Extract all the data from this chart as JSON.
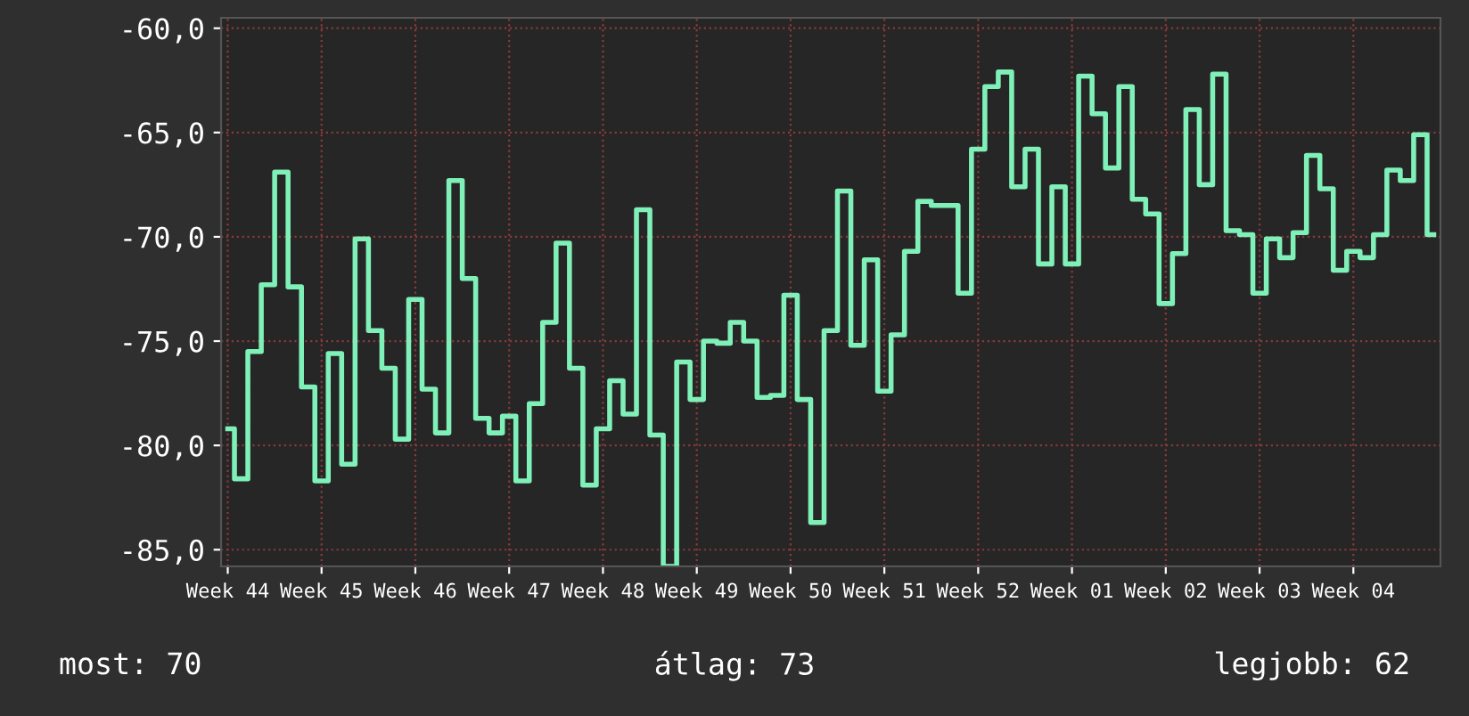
{
  "chart_data": {
    "type": "step",
    "categories": [
      "Week 44",
      null,
      null,
      null,
      null,
      null,
      null,
      "Week 45",
      null,
      null,
      null,
      null,
      null,
      null,
      "Week 46",
      null,
      null,
      null,
      null,
      null,
      null,
      "Week 47",
      null,
      null,
      null,
      null,
      null,
      null,
      "Week 48",
      null,
      null,
      null,
      null,
      null,
      null,
      "Week 49",
      null,
      null,
      null,
      null,
      null,
      null,
      "Week 50",
      null,
      null,
      null,
      null,
      null,
      null,
      "Week 51",
      null,
      null,
      null,
      null,
      null,
      null,
      "Week 52",
      null,
      null,
      null,
      null,
      null,
      null,
      "Week 01",
      null,
      null,
      null,
      null,
      null,
      null,
      "Week 02",
      null,
      null,
      null,
      null,
      null,
      null,
      "Week 03",
      null,
      null,
      null,
      null,
      null,
      null,
      "Week 04",
      null,
      null,
      null,
      null,
      null,
      null
    ],
    "series": [
      {
        "color": "#7ff0b8",
        "values": [
          -79.2,
          -81.6,
          -75.5,
          -72.3,
          -66.9,
          -72.4,
          -77.2,
          -81.7,
          -75.6,
          -80.9,
          -70.1,
          -74.5,
          -76.3,
          -79.7,
          -73.0,
          -77.3,
          -79.4,
          -67.3,
          -72.0,
          -78.7,
          -79.4,
          -78.6,
          -81.7,
          -78.0,
          -74.1,
          -70.3,
          -76.3,
          -81.9,
          -79.2,
          -76.9,
          -78.5,
          -68.7,
          -79.5,
          -85.8,
          -76.0,
          -77.8,
          -75.0,
          -75.1,
          -74.1,
          -75.0,
          -77.7,
          -77.6,
          -72.8,
          -77.8,
          -83.7,
          -74.5,
          -67.8,
          -75.2,
          -71.1,
          -77.4,
          -74.7,
          -70.7,
          -68.3,
          -68.5,
          -68.5,
          -72.7,
          -65.8,
          -62.8,
          -62.1,
          -67.6,
          -65.8,
          -71.3,
          -67.6,
          -71.3,
          -62.3,
          -64.1,
          -66.7,
          -62.8,
          -68.2,
          -68.9,
          -73.2,
          -70.8,
          -63.9,
          -67.5,
          -62.2,
          -69.7,
          -69.9,
          -72.7,
          -70.1,
          -71.0,
          -69.8,
          -66.1,
          -67.7,
          -71.6,
          -70.7,
          -71.0,
          -69.9,
          -66.8,
          -67.3,
          -65.1,
          -69.9
        ]
      }
    ],
    "ylim": [
      -85.8,
      -59.5
    ],
    "yticks": [
      {
        "value": -85,
        "label": "-85,0"
      },
      {
        "value": -80,
        "label": "-80,0"
      },
      {
        "value": -75,
        "label": "-75,0"
      },
      {
        "value": -70,
        "label": "-70,0"
      },
      {
        "value": -65,
        "label": "-65,0"
      },
      {
        "value": -60,
        "label": "-60,0"
      }
    ],
    "grid": true,
    "annotations": [
      "most: 70",
      "átlag: 73",
      "legjobb: 62"
    ]
  }
}
